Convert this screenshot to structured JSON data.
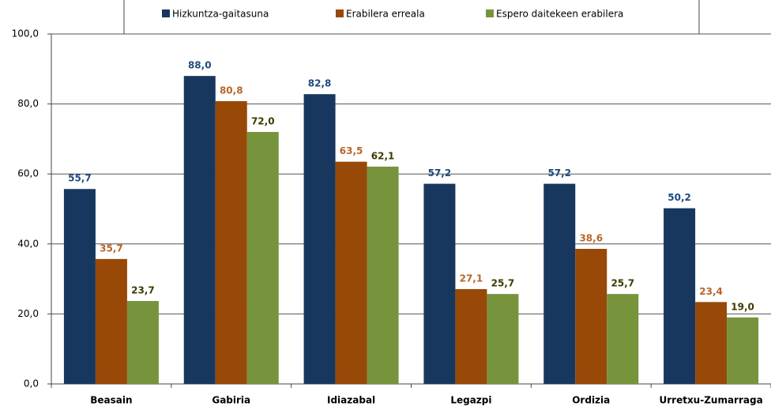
{
  "chart_data": {
    "type": "bar",
    "categories": [
      "Beasain",
      "Gabiria",
      "Idiazabal",
      "Legazpi",
      "Ordizia",
      "Urretxu-Zumarraga"
    ],
    "series": [
      {
        "name": "Hizkuntza-gaitasuna",
        "color": "#17375e",
        "label_color": "#1f497d",
        "values": [
          55.7,
          88.0,
          82.8,
          57.2,
          57.2,
          50.2
        ],
        "value_labels": [
          "55,7",
          "88,0",
          "82,8",
          "57,2",
          "57,2",
          "50,2"
        ]
      },
      {
        "name": "Erabilera erreala",
        "color": "#984807",
        "label_color": "#b8652a",
        "values": [
          35.7,
          80.8,
          63.5,
          27.1,
          38.6,
          23.4
        ],
        "value_labels": [
          "35,7",
          "80,8",
          "63,5",
          "27,1",
          "38,6",
          "23,4"
        ]
      },
      {
        "name": "Espero daitekeen erabilera",
        "color": "#77933c",
        "label_color": "#3b3b00",
        "values": [
          23.7,
          72.0,
          62.1,
          25.7,
          25.7,
          19.0
        ],
        "value_labels": [
          "23,7",
          "72,0",
          "62,1",
          "25,7",
          "25,7",
          "19,0"
        ]
      }
    ],
    "ylim": [
      0,
      100
    ],
    "yticks": [
      {
        "value": 0,
        "label": "0,0"
      },
      {
        "value": 20,
        "label": "20,0"
      },
      {
        "value": 40,
        "label": "40,0"
      },
      {
        "value": 60,
        "label": "60,0"
      },
      {
        "value": 80,
        "label": "80,0"
      },
      {
        "value": 100,
        "label": "100,0"
      }
    ],
    "grid": true,
    "legend": "top"
  }
}
